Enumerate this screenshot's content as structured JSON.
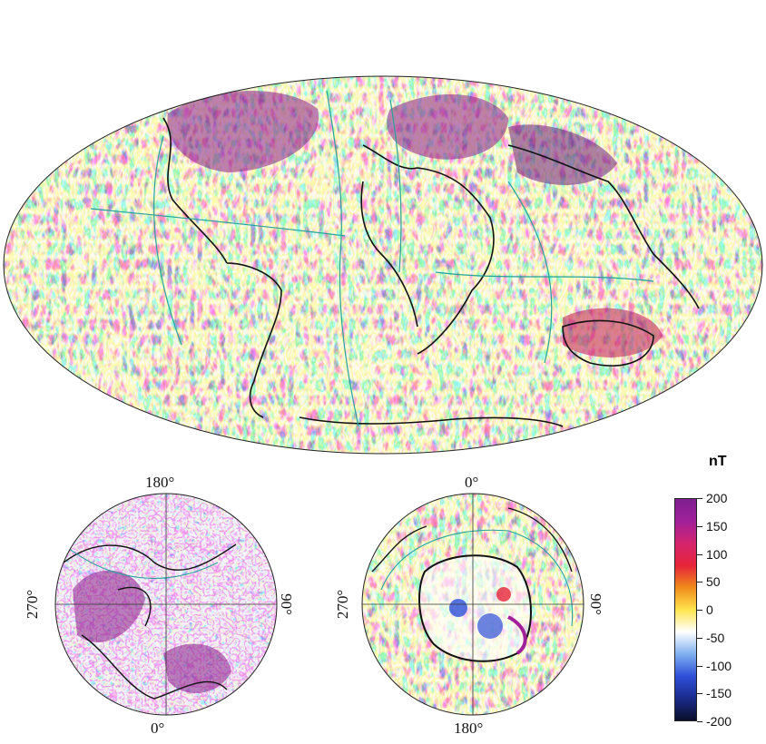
{
  "maps": {
    "global": {
      "projection": "Hammer-Aitoff"
    },
    "north_polar": {
      "labels": {
        "top": "180°",
        "bottom": "0°",
        "left": "270°",
        "right": "90°"
      }
    },
    "south_polar": {
      "labels": {
        "top": "0°",
        "bottom": "180°",
        "left": "270°",
        "right": "90°"
      }
    }
  },
  "colorbar": {
    "unit": "nT",
    "min": -200,
    "max": 200,
    "ticks": [
      "200",
      "150",
      "100",
      "50",
      "0",
      "-50",
      "-100",
      "-150",
      "-200"
    ],
    "colors": [
      "#0b0f2a",
      "#1a2b8c",
      "#2e4fd8",
      "#7fb0f0",
      "#ffffff",
      "#ffe44d",
      "#f08a1a",
      "#e6243a",
      "#d4246e",
      "#a0209a",
      "#7d1f8f"
    ]
  }
}
